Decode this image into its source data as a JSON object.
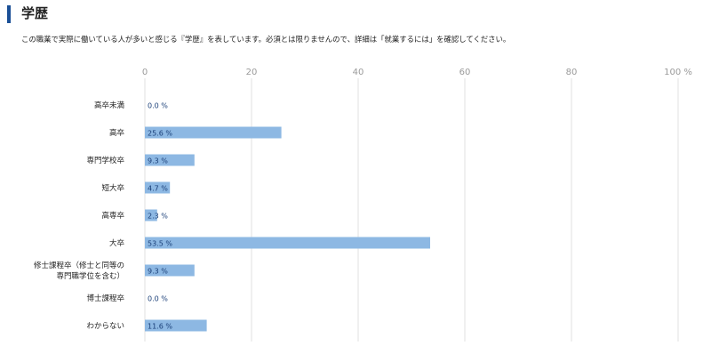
{
  "page": {
    "title": "学歴",
    "description": "この職業で実際に働いている人が多いと感じる『学歴』を表しています。必須とは限りませんので、詳細は「就業するには」を確認してください。"
  },
  "colors": {
    "accent": "#1a4f96",
    "bar": "#8db8e3",
    "grid": "#e2e2e2",
    "label": "#1a3f78"
  },
  "chart_data": {
    "type": "bar",
    "orientation": "horizontal",
    "title": "",
    "xlabel": "",
    "ylabel": "",
    "xlim": [
      0,
      100
    ],
    "ticks": [
      "0",
      "20",
      "40",
      "60",
      "80",
      "100 %"
    ],
    "tick_values": [
      0,
      20,
      40,
      60,
      80,
      100
    ],
    "grid": true,
    "categories": [
      [
        "高卒未満"
      ],
      [
        "高卒"
      ],
      [
        "専門学校卒"
      ],
      [
        "短大卒"
      ],
      [
        "高専卒"
      ],
      [
        "大卒"
      ],
      [
        "修士課程卒（修士と同等の",
        "専門職学位を含む）"
      ],
      [
        "博士課程卒"
      ],
      [
        "わからない"
      ]
    ],
    "values": [
      0.0,
      25.6,
      9.3,
      4.7,
      2.3,
      53.5,
      9.3,
      0.0,
      11.6
    ],
    "value_labels": [
      "0.0 %",
      "25.6 %",
      "9.3 %",
      "4.7 %",
      "2.3 %",
      "53.5 %",
      "9.3 %",
      "0.0 %",
      "11.6 %"
    ]
  }
}
